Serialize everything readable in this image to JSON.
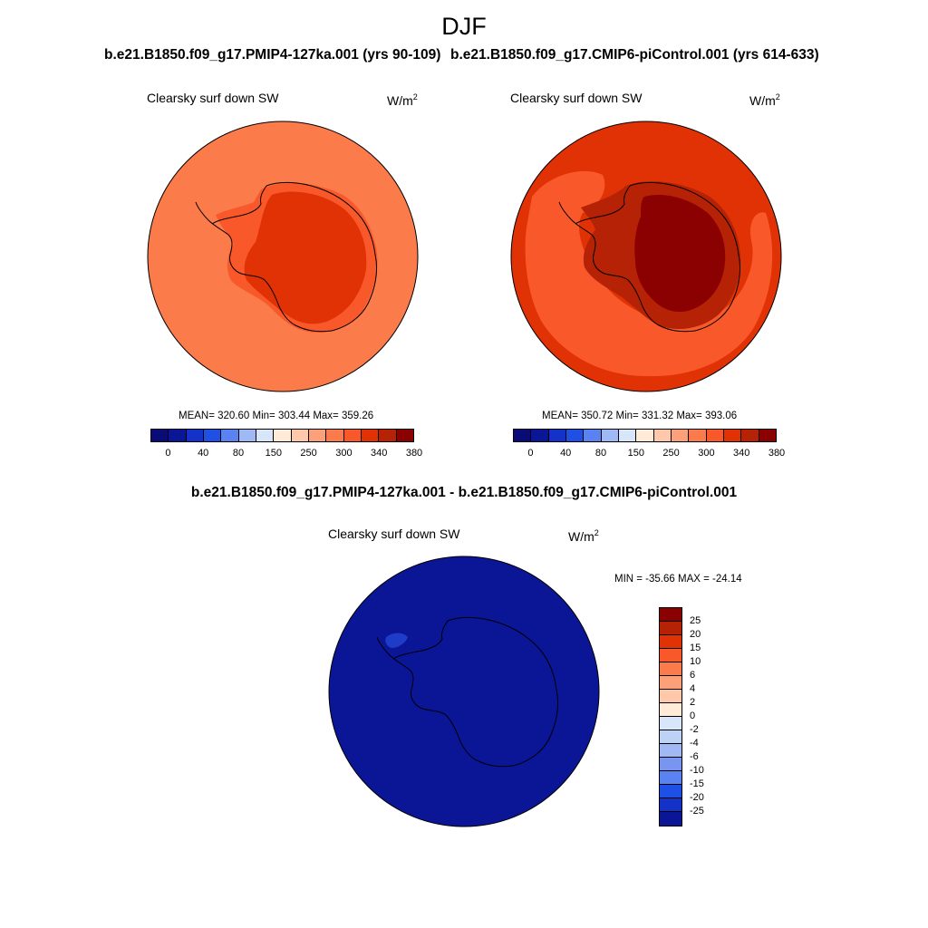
{
  "figure": {
    "season": "DJF",
    "panels": [
      {
        "title": "b.e21.B1850.f09_g17.PMIP4-127ka.001 (yrs 90-109)",
        "variable": "Clearsky surf down SW",
        "units": "W/m",
        "units_sup": "2",
        "stats": "MEAN= 320.60  Min= 303.44  Max= 359.26",
        "ocean_color": "#FB7B4A",
        "coast_band_color": "#F9592A",
        "interior_color": "#E13205"
      },
      {
        "title": "b.e21.B1850.f09_g17.CMIP6-piControl.001 (yrs 614-633)",
        "variable": "Clearsky surf down SW",
        "units": "W/m",
        "units_sup": "2",
        "stats": "MEAN= 350.72  Min= 331.32  Max= 393.06",
        "ocean_color": "#E13205",
        "outer_ring_color": "#F9592A",
        "coast_band_color": "#B52205",
        "interior_color": "#8B0000"
      }
    ],
    "difference": {
      "title": "b.e21.B1850.f09_g17.PMIP4-127ka.001 - b.e21.B1850.f09_g17.CMIP6-piControl.001",
      "variable": "Clearsky surf down SW",
      "units": "W/m",
      "units_sup": "2",
      "minmax": "MIN = -35.66 MAX = -24.14",
      "field_color": "#0A1696",
      "patch_color": "#1E3CC8"
    },
    "colorbar_main": {
      "colors": [
        "#0A0A78",
        "#0A1696",
        "#1432C8",
        "#1E50E6",
        "#5A82F0",
        "#A0B9F5",
        "#D7E6FA",
        "#FFEBD7",
        "#FFC8AA",
        "#FBA078",
        "#FB7B4A",
        "#F9592A",
        "#E13205",
        "#B52205",
        "#8B0000"
      ],
      "ticks": [
        "0",
        "40",
        "80",
        "150",
        "250",
        "300",
        "340",
        "380"
      ]
    },
    "colorbar_diff": {
      "colors": [
        "#8B0000",
        "#B52205",
        "#E13205",
        "#F9592A",
        "#FB7B4A",
        "#FBA078",
        "#FFC8AA",
        "#FFEBD7",
        "#D7E6FA",
        "#BED2F5",
        "#A0B9F5",
        "#7896F0",
        "#5A82F0",
        "#1E50E6",
        "#1432C8",
        "#0A1696"
      ],
      "ticks": [
        "25",
        "20",
        "15",
        "10",
        "6",
        "4",
        "2",
        "0",
        "-2",
        "-4",
        "-6",
        "-10",
        "-15",
        "-20",
        "-25"
      ]
    }
  }
}
